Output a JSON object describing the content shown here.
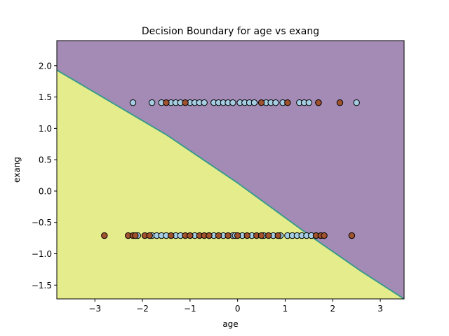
{
  "chart_data": {
    "type": "scatter",
    "title": "Decision Boundary for age vs exang",
    "xlabel": "age",
    "ylabel": "exang",
    "xlim": [
      -3.8,
      3.5
    ],
    "ylim": [
      -1.72,
      2.4
    ],
    "xticks": [
      -3,
      -2,
      -1,
      0,
      1,
      2,
      3
    ],
    "xtick_labels": [
      "−3",
      "−2",
      "−1",
      "0",
      "1",
      "2",
      "3"
    ],
    "yticks": [
      -1.5,
      -1.0,
      -0.5,
      0.0,
      0.5,
      1.0,
      1.5,
      2.0
    ],
    "ytick_labels": [
      "−1.5",
      "−1.0",
      "−0.5",
      "0.0",
      "0.5",
      "1.0",
      "1.5",
      "2.0"
    ],
    "grid": false,
    "decision_boundary": {
      "points": [
        [
          -3.8,
          1.93
        ],
        [
          -1.5,
          0.9
        ],
        [
          0,
          0.13
        ],
        [
          1.5,
          -0.7
        ],
        [
          2.6,
          -1.28
        ],
        [
          3.5,
          -1.72
        ]
      ],
      "region_above_color": "#a38bb6",
      "region_below_color": "#e5ec8b",
      "line_color": "#3b9a8c"
    },
    "class_colors": {
      "class_0": "#a6cee3",
      "class_1": "#a0522d"
    },
    "series": [
      {
        "class": 0,
        "points": [
          [
            -2.2,
            1.41
          ],
          [
            -1.8,
            1.41
          ],
          [
            -1.6,
            1.41
          ],
          [
            -1.4,
            1.41
          ],
          [
            -1.3,
            1.41
          ],
          [
            -1.2,
            1.41
          ],
          [
            -1.0,
            1.41
          ],
          [
            -0.9,
            1.41
          ],
          [
            -0.8,
            1.41
          ],
          [
            -0.7,
            1.41
          ],
          [
            -0.5,
            1.41
          ],
          [
            -0.4,
            1.41
          ],
          [
            -0.3,
            1.41
          ],
          [
            -0.2,
            1.41
          ],
          [
            -0.1,
            1.41
          ],
          [
            0.05,
            1.41
          ],
          [
            0.15,
            1.41
          ],
          [
            0.25,
            1.41
          ],
          [
            0.35,
            1.41
          ],
          [
            0.6,
            1.41
          ],
          [
            0.7,
            1.41
          ],
          [
            0.8,
            1.41
          ],
          [
            0.95,
            1.41
          ],
          [
            1.3,
            1.41
          ],
          [
            1.4,
            1.41
          ],
          [
            1.5,
            1.41
          ],
          [
            1.7,
            1.41
          ],
          [
            2.5,
            1.41
          ],
          [
            -2.1,
            -0.71
          ],
          [
            -1.8,
            -0.71
          ],
          [
            -1.7,
            -0.71
          ],
          [
            -1.6,
            -0.71
          ],
          [
            -1.5,
            -0.71
          ],
          [
            -1.3,
            -0.71
          ],
          [
            -1.2,
            -0.71
          ],
          [
            -0.9,
            -0.71
          ],
          [
            -0.6,
            -0.71
          ],
          [
            -0.5,
            -0.71
          ],
          [
            -0.3,
            -0.71
          ],
          [
            -0.1,
            -0.71
          ],
          [
            -0.05,
            -0.71
          ],
          [
            0.1,
            -0.71
          ],
          [
            0.3,
            -0.71
          ],
          [
            0.55,
            -0.71
          ],
          [
            0.75,
            -0.71
          ],
          [
            0.9,
            -0.71
          ],
          [
            1.05,
            -0.71
          ],
          [
            1.15,
            -0.71
          ],
          [
            1.25,
            -0.71
          ],
          [
            1.35,
            -0.71
          ],
          [
            1.45,
            -0.71
          ],
          [
            1.55,
            -0.71
          ]
        ]
      },
      {
        "class": 1,
        "points": [
          [
            -1.5,
            1.41
          ],
          [
            -1.1,
            1.41
          ],
          [
            0.5,
            1.41
          ],
          [
            1.05,
            1.41
          ],
          [
            1.7,
            1.41
          ],
          [
            2.15,
            1.41
          ],
          [
            -2.8,
            -0.71
          ],
          [
            -2.3,
            -0.71
          ],
          [
            -2.2,
            -0.71
          ],
          [
            -2.15,
            -0.71
          ],
          [
            -1.95,
            -0.71
          ],
          [
            -1.85,
            -0.71
          ],
          [
            -1.4,
            -0.71
          ],
          [
            -1.1,
            -0.71
          ],
          [
            -1.0,
            -0.71
          ],
          [
            -0.8,
            -0.71
          ],
          [
            -0.7,
            -0.71
          ],
          [
            -0.6,
            -0.71
          ],
          [
            -0.4,
            -0.71
          ],
          [
            -0.2,
            -0.71
          ],
          [
            0.0,
            -0.71
          ],
          [
            0.2,
            -0.71
          ],
          [
            0.4,
            -0.71
          ],
          [
            0.5,
            -0.71
          ],
          [
            0.65,
            -0.71
          ],
          [
            0.85,
            -0.71
          ],
          [
            1.65,
            -0.71
          ],
          [
            1.75,
            -0.71
          ],
          [
            1.82,
            -0.71
          ],
          [
            2.4,
            -0.71
          ]
        ]
      }
    ]
  }
}
